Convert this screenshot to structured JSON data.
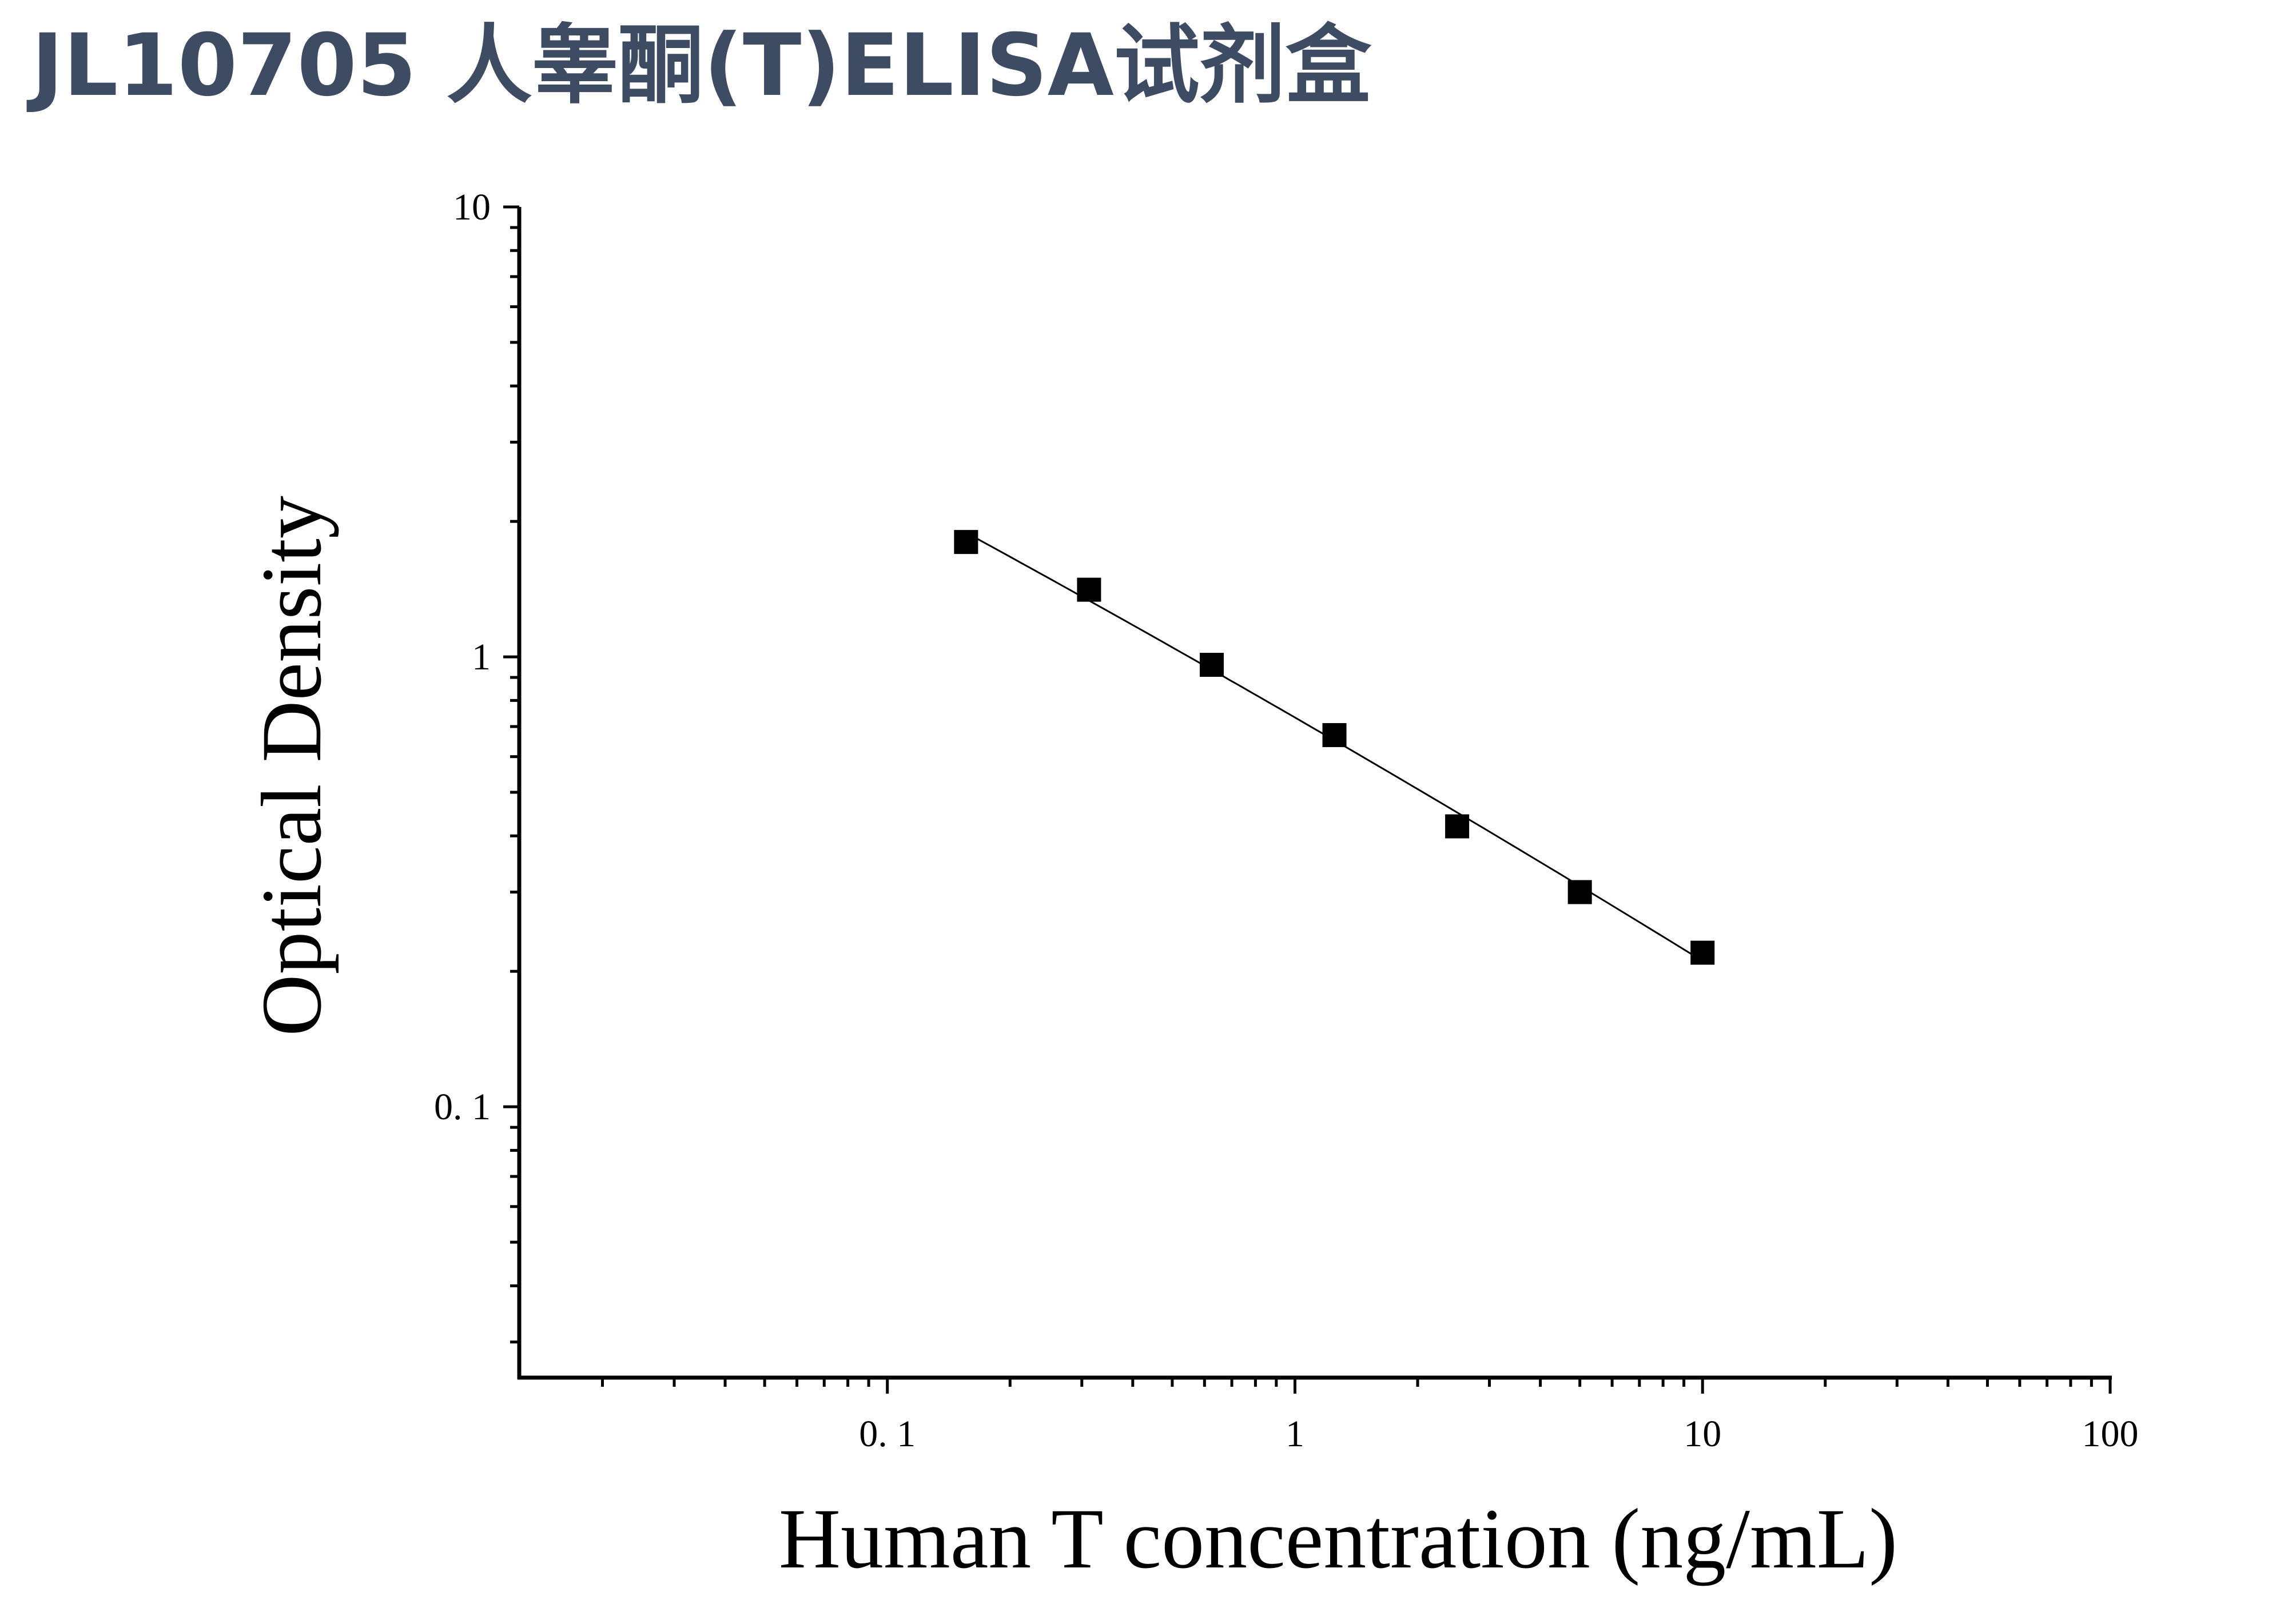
{
  "header": {
    "title": "JL10705 人睾酮(T)ELISA试剂盒"
  },
  "chart_data": {
    "type": "scatter",
    "title": "",
    "xlabel": "Human T concentration (ng/mL)",
    "ylabel": "Optical Density",
    "x_scale": "log",
    "y_scale": "log",
    "xlim": [
      0.0125,
      100
    ],
    "ylim": [
      0.025,
      10
    ],
    "x_ticks": [
      0.1,
      1,
      10,
      100
    ],
    "x_tick_labels": [
      "0. 1",
      "1",
      "10",
      "100"
    ],
    "y_ticks": [
      0.1,
      1,
      10
    ],
    "y_tick_labels": [
      "0. 1",
      "1",
      "10"
    ],
    "grid": false,
    "series": [
      {
        "marker": "square",
        "color": "#000000",
        "fit_line": true,
        "x": [
          0.156,
          0.3125,
          0.625,
          1.25,
          2.5,
          5,
          10
        ],
        "y": [
          1.8,
          1.41,
          0.96,
          0.67,
          0.42,
          0.3,
          0.22
        ]
      }
    ]
  }
}
